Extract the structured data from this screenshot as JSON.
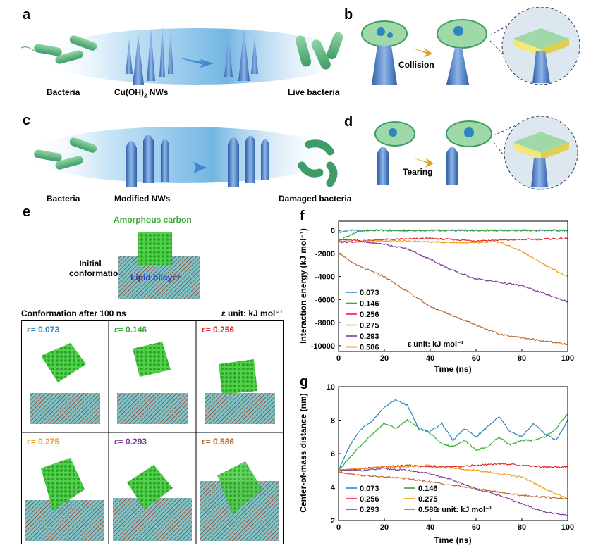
{
  "panels": {
    "a": {
      "label": "a",
      "captions": [
        "Bacteria",
        "Cu(OH)",
        "2",
        " NWs",
        "Live bacteria"
      ]
    },
    "b": {
      "label": "b",
      "action": "Collision"
    },
    "c": {
      "label": "c",
      "captions": [
        "Bacteria",
        "Modified NWs",
        "Damaged bacteria"
      ]
    },
    "d": {
      "label": "d",
      "action": "Tearing"
    },
    "e": {
      "label": "e",
      "amorphous_carbon": "Amorphous carbon",
      "initial_1": "Initial",
      "initial_2": "conformation",
      "lipid_bilayer": "Lipid bilayer",
      "after_title": "Conformation after 100 ns",
      "eps_unit": "ε unit: kJ mol⁻¹",
      "cells": [
        {
          "label": "ε= 0.073",
          "color": "#2e86c1"
        },
        {
          "label": "ε= 0.146",
          "color": "#3aaa35"
        },
        {
          "label": "ε= 0.256",
          "color": "#e3242b"
        },
        {
          "label": "ε= 0.275",
          "color": "#f39c12"
        },
        {
          "label": "ε= 0.293",
          "color": "#7d3c98"
        },
        {
          "label": "ε= 0.586",
          "color": "#b9652b"
        }
      ]
    },
    "f": {
      "label": "f",
      "eps_unit": "ε unit: kJ mol⁻¹"
    },
    "g": {
      "label": "g",
      "eps_unit": "ε unit: kJ mol⁻¹"
    }
  },
  "chart_data": [
    {
      "type": "line",
      "panel": "f",
      "xlabel": "Time (ns)",
      "ylabel": "Interaction energy (kJ mol⁻¹)",
      "xlim": [
        0,
        100
      ],
      "ylim": [
        -10500,
        800
      ],
      "xticks": [
        0,
        20,
        40,
        60,
        80,
        100
      ],
      "yticks": [
        0,
        -2000,
        -4000,
        -6000,
        -8000,
        -10000
      ],
      "legend": "bottom-left",
      "series": [
        {
          "name": "0.073",
          "color": "#2e86c1",
          "x": [
            0,
            3,
            6,
            10,
            20,
            100
          ],
          "y": [
            -200,
            -50,
            0,
            0,
            0,
            0
          ]
        },
        {
          "name": "0.146",
          "color": "#3aaa35",
          "x": [
            0,
            4,
            8,
            12,
            20,
            100
          ],
          "y": [
            -900,
            -500,
            -150,
            0,
            0,
            0
          ]
        },
        {
          "name": "0.256",
          "color": "#e3242b",
          "x": [
            0,
            10,
            20,
            40,
            60,
            80,
            100
          ],
          "y": [
            -800,
            -900,
            -800,
            -700,
            -900,
            -800,
            -700
          ]
        },
        {
          "name": "0.275",
          "color": "#f39c12",
          "x": [
            0,
            20,
            40,
            60,
            70,
            80,
            90,
            100
          ],
          "y": [
            -1000,
            -900,
            -1000,
            -1100,
            -1000,
            -1800,
            -3000,
            -4000
          ]
        },
        {
          "name": "0.293",
          "color": "#7d3c98",
          "x": [
            0,
            10,
            20,
            30,
            40,
            50,
            60,
            70,
            80,
            90,
            100
          ],
          "y": [
            -1000,
            -1000,
            -1200,
            -1600,
            -2500,
            -3500,
            -4200,
            -4500,
            -4800,
            -5500,
            -6200
          ]
        },
        {
          "name": "0.586",
          "color": "#b9652b",
          "x": [
            0,
            5,
            10,
            20,
            30,
            40,
            50,
            60,
            70,
            80,
            90,
            100
          ],
          "y": [
            -1900,
            -2700,
            -3200,
            -4000,
            -5300,
            -6600,
            -7400,
            -8200,
            -9000,
            -9300,
            -9600,
            -9900
          ]
        }
      ]
    },
    {
      "type": "line",
      "panel": "g",
      "xlabel": "Time (ns)",
      "ylabel": "Center-of-mass distance (nm)",
      "xlim": [
        0,
        100
      ],
      "ylim": [
        2,
        10
      ],
      "xticks": [
        0,
        20,
        40,
        60,
        80,
        100
      ],
      "yticks": [
        2,
        4,
        6,
        8,
        10
      ],
      "legend": "bottom-left",
      "series": [
        {
          "name": "0.073",
          "color": "#2e86c1",
          "x": [
            0,
            5,
            10,
            15,
            20,
            25,
            30,
            35,
            40,
            45,
            50,
            55,
            60,
            65,
            70,
            75,
            80,
            85,
            90,
            95,
            100
          ],
          "y": [
            5.0,
            6.5,
            7.5,
            8.0,
            8.8,
            9.2,
            8.9,
            7.5,
            7.3,
            7.8,
            6.8,
            7.5,
            7.0,
            7.6,
            8.2,
            7.3,
            7.0,
            7.8,
            7.2,
            6.8,
            8.0
          ]
        },
        {
          "name": "0.146",
          "color": "#3aaa35",
          "x": [
            0,
            5,
            10,
            15,
            20,
            25,
            30,
            35,
            40,
            45,
            50,
            55,
            60,
            65,
            70,
            75,
            80,
            85,
            90,
            95,
            100
          ],
          "y": [
            5.0,
            5.8,
            6.5,
            7.2,
            7.8,
            7.5,
            8.0,
            7.6,
            7.2,
            6.6,
            6.4,
            6.8,
            6.2,
            6.4,
            7.0,
            6.5,
            6.8,
            6.8,
            7.0,
            7.5,
            8.4
          ]
        },
        {
          "name": "0.256",
          "color": "#e3242b",
          "x": [
            0,
            10,
            20,
            30,
            40,
            50,
            60,
            70,
            80,
            90,
            100
          ],
          "y": [
            5.0,
            5.1,
            5.2,
            5.3,
            5.2,
            5.2,
            5.3,
            5.4,
            5.3,
            5.2,
            5.2
          ]
        },
        {
          "name": "0.275",
          "color": "#f39c12",
          "x": [
            0,
            10,
            20,
            30,
            40,
            50,
            60,
            70,
            80,
            90,
            100
          ],
          "y": [
            5.0,
            5.1,
            5.2,
            5.2,
            5.3,
            5.1,
            5.0,
            4.8,
            4.6,
            3.9,
            3.3
          ]
        },
        {
          "name": "0.293",
          "color": "#7d3c98",
          "x": [
            0,
            10,
            20,
            30,
            40,
            50,
            60,
            70,
            80,
            90,
            100
          ],
          "y": [
            5.0,
            5.0,
            5.1,
            5.0,
            4.8,
            4.4,
            3.9,
            3.5,
            3.0,
            2.5,
            2.3
          ]
        },
        {
          "name": "0.586",
          "color": "#b9652b",
          "x": [
            0,
            10,
            20,
            30,
            40,
            50,
            60,
            70,
            80,
            90,
            100
          ],
          "y": [
            4.9,
            4.7,
            4.6,
            4.5,
            4.3,
            4.1,
            3.9,
            3.7,
            3.5,
            3.4,
            3.3
          ]
        }
      ]
    }
  ]
}
